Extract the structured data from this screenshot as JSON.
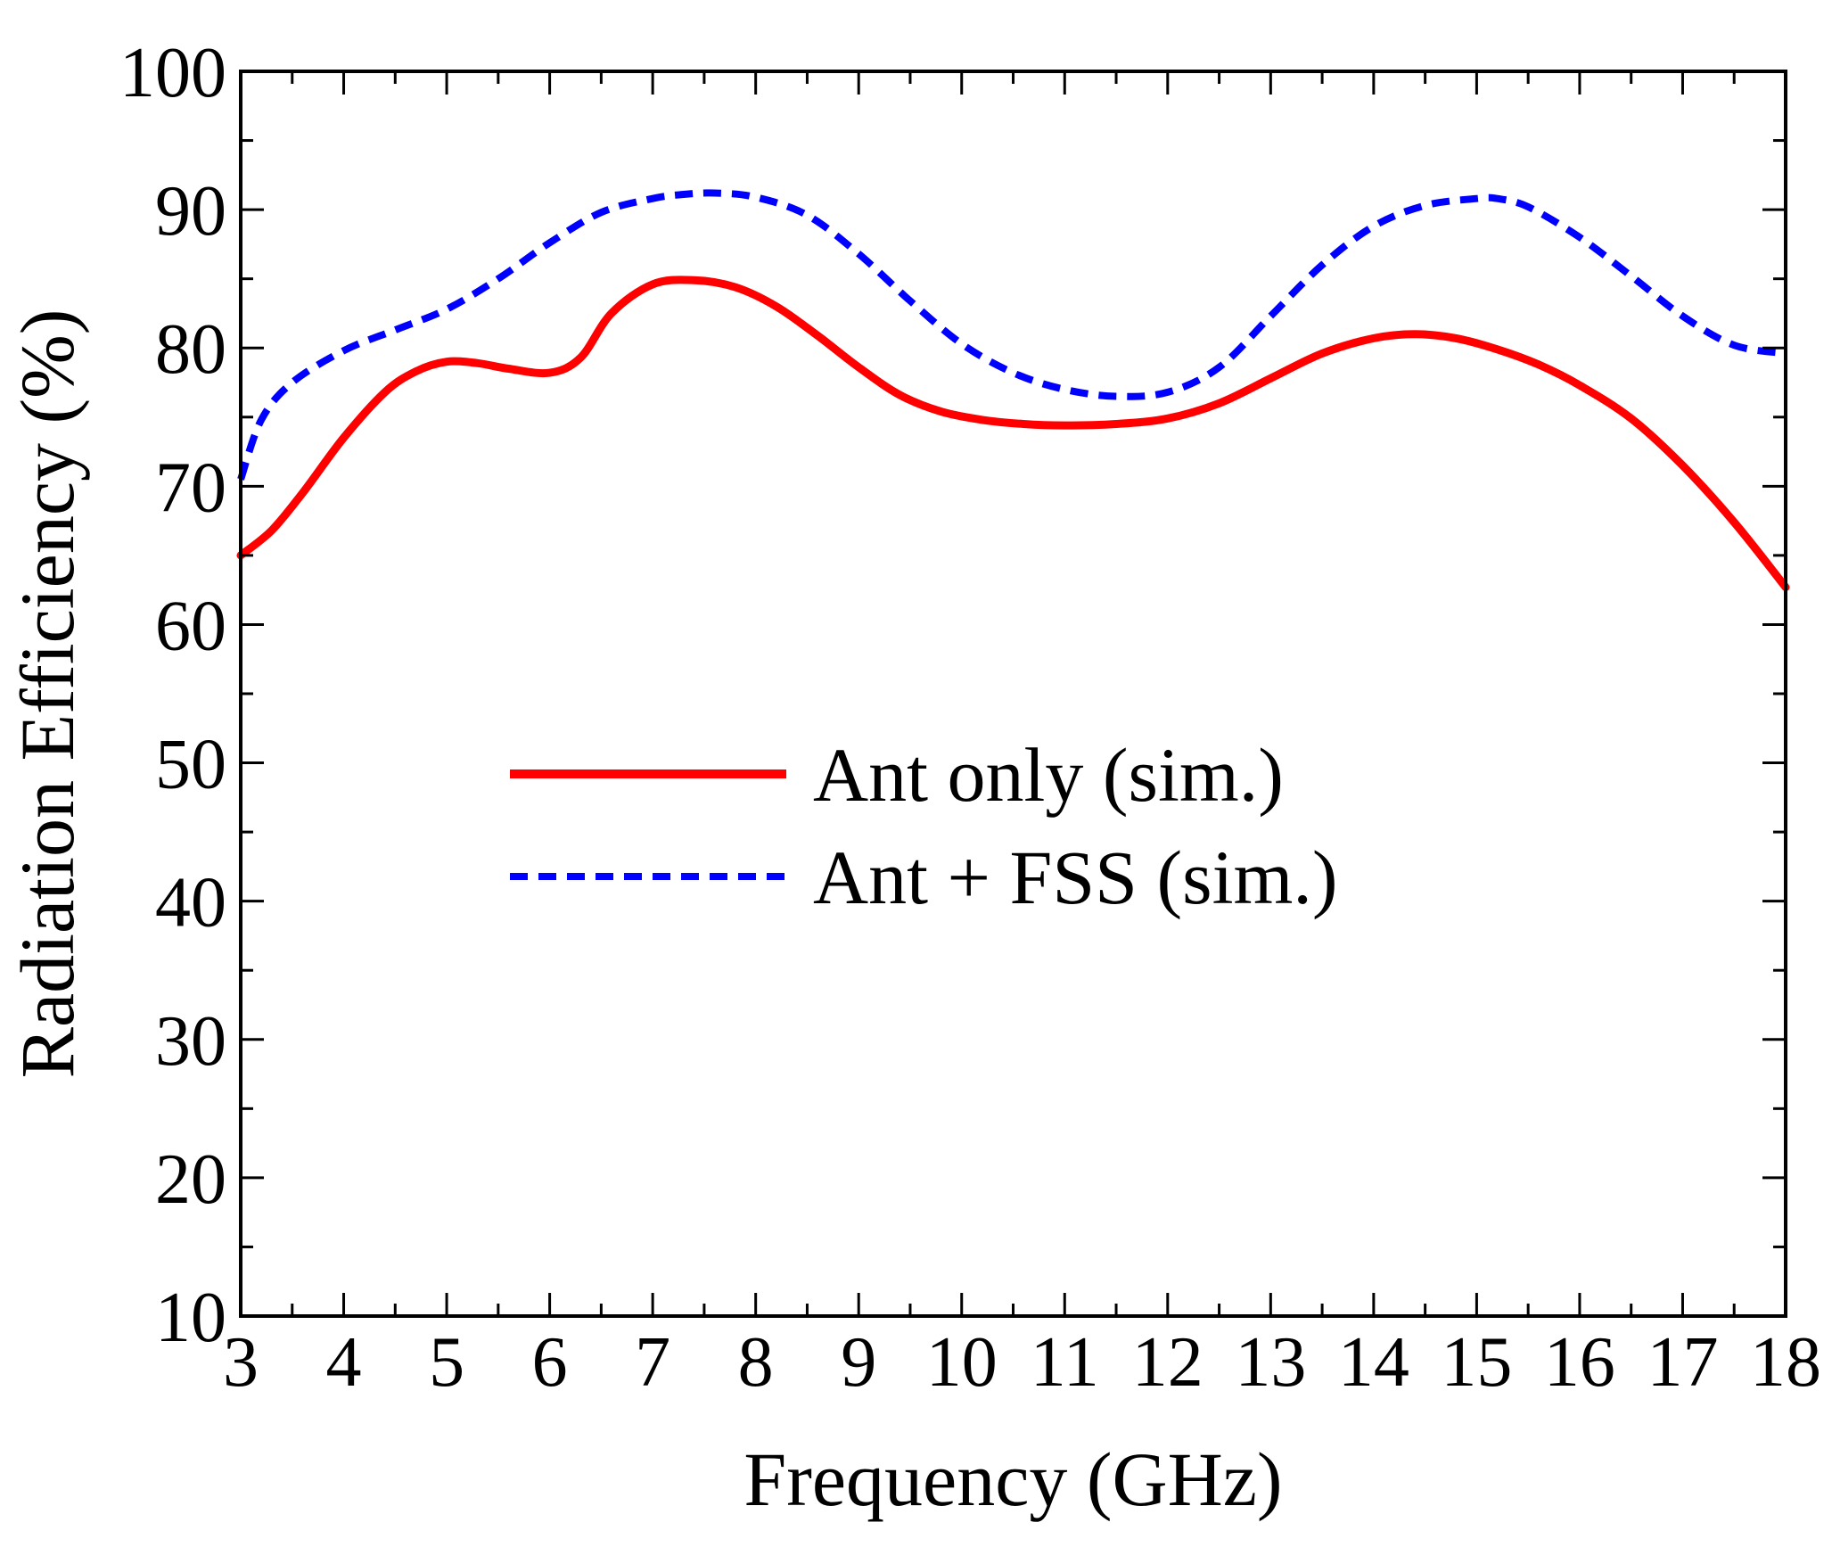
{
  "chart_data": {
    "type": "line",
    "title": "",
    "xlabel": "Frequency (GHz)",
    "ylabel": "Radiation Efficiency (%)",
    "xlim": [
      3,
      18
    ],
    "ylim": [
      10,
      100
    ],
    "x_ticks": [
      3,
      4,
      5,
      6,
      7,
      8,
      9,
      10,
      11,
      12,
      13,
      14,
      15,
      16,
      17,
      18
    ],
    "y_ticks": [
      10,
      20,
      30,
      40,
      50,
      60,
      70,
      80,
      90,
      100
    ],
    "x_tick_labels": [
      "3",
      "4",
      "5",
      "6",
      "7",
      "8",
      "9",
      "10",
      "11",
      "12",
      "13",
      "14",
      "15",
      "16",
      "17",
      "18"
    ],
    "y_tick_labels": [
      "10",
      "20",
      "30",
      "40",
      "50",
      "60",
      "70",
      "80",
      "90",
      "100"
    ],
    "grid": false,
    "legend_position": "center",
    "series": [
      {
        "name": "Ant only (sim.)",
        "color": "#ff0000",
        "style": "solid",
        "x": [
          3,
          3.3,
          3.6,
          4.0,
          4.4,
          4.7,
          5.0,
          5.3,
          5.6,
          6.0,
          6.3,
          6.6,
          7.0,
          7.4,
          7.8,
          8.2,
          8.6,
          9.0,
          9.4,
          9.8,
          10.2,
          10.6,
          11.0,
          11.5,
          12.0,
          12.5,
          13.0,
          13.5,
          14.0,
          14.4,
          14.8,
          15.2,
          15.6,
          16.0,
          16.5,
          17.0,
          17.5,
          18.0
        ],
        "y": [
          65,
          66.8,
          69.5,
          73.5,
          76.8,
          78.3,
          79.0,
          78.9,
          78.5,
          78.2,
          79.3,
          82.5,
          84.6,
          84.9,
          84.4,
          83.0,
          80.9,
          78.6,
          76.6,
          75.4,
          74.8,
          74.5,
          74.4,
          74.5,
          74.9,
          76.0,
          77.8,
          79.6,
          80.7,
          81.0,
          80.7,
          79.9,
          78.8,
          77.3,
          74.9,
          71.5,
          67.4,
          62.7
        ]
      },
      {
        "name": "Ant + FSS (sim.)",
        "color": "#0000ff",
        "style": "dashed",
        "x": [
          3,
          3.2,
          3.5,
          4.0,
          4.5,
          5.0,
          5.5,
          6.0,
          6.5,
          7.0,
          7.3,
          7.6,
          8.0,
          8.5,
          9.0,
          9.5,
          10.0,
          10.5,
          11.0,
          11.5,
          12.0,
          12.5,
          13.0,
          13.5,
          14.0,
          14.5,
          15.0,
          15.2,
          15.5,
          16.0,
          16.5,
          17.0,
          17.5,
          18.0
        ],
        "y": [
          70.5,
          74.8,
          77.5,
          79.8,
          81.3,
          82.8,
          85.0,
          87.6,
          89.8,
          90.8,
          91.1,
          91.2,
          90.9,
          89.6,
          86.8,
          83.4,
          80.3,
          78.2,
          77.0,
          76.5,
          76.8,
          78.6,
          82.3,
          86.0,
          88.8,
          90.3,
          90.8,
          90.8,
          90.2,
          88.0,
          85.2,
          82.3,
          80.2,
          79.6
        ]
      }
    ]
  }
}
